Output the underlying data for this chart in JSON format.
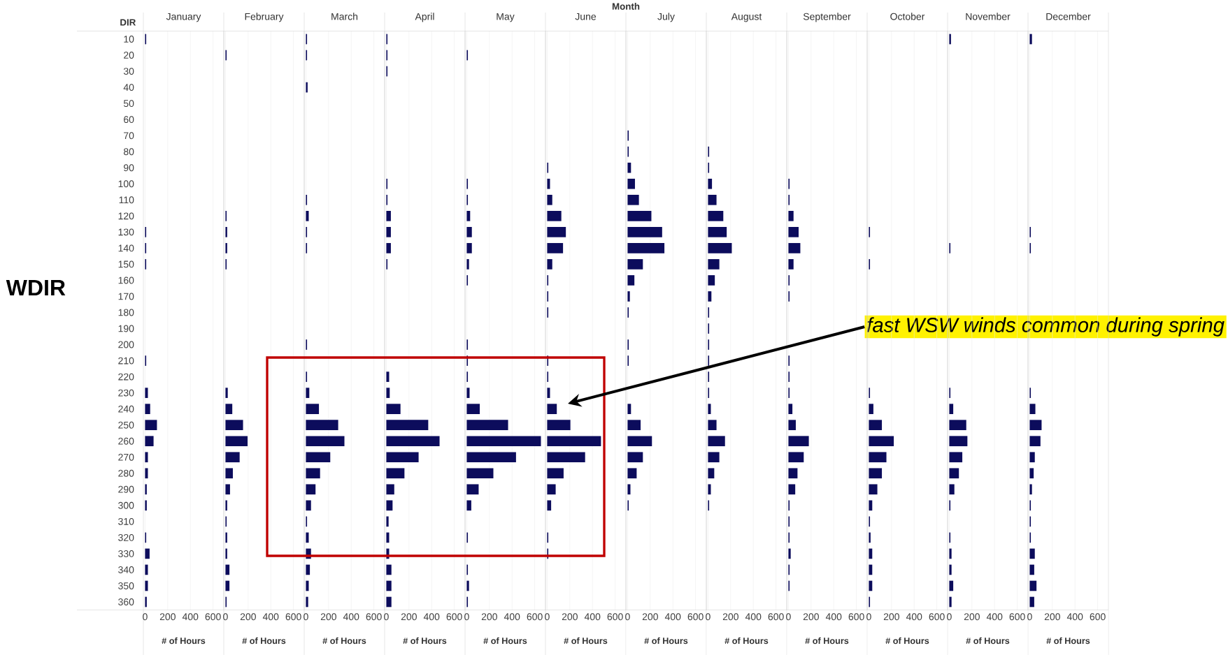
{
  "chart_data": [
    {
      "type": "bar",
      "orientation": "horizontal",
      "title": "January",
      "xlabel": "# of Hours",
      "ylabel": "WDIR",
      "annotations": [
        "Month",
        "DIR"
      ],
      "categories": [
        "10",
        "20",
        "30",
        "40",
        "50",
        "60",
        "70",
        "80",
        "90",
        "100",
        "110",
        "120",
        "130",
        "140",
        "150",
        "160",
        "170",
        "180",
        "190",
        "200",
        "210",
        "220",
        "230",
        "240",
        "250",
        "260",
        "270",
        "280",
        "290",
        "300",
        "310",
        "320",
        "330",
        "340",
        "350",
        "360"
      ],
      "color": "#0c0c5c",
      "xlim": [
        -15,
        695
      ],
      "xticks": [
        0,
        200,
        400,
        600
      ],
      "grid": "x",
      "values": [
        10,
        null,
        null,
        null,
        null,
        null,
        null,
        null,
        null,
        null,
        null,
        null,
        10,
        10,
        10,
        null,
        null,
        null,
        null,
        null,
        10,
        null,
        25,
        45,
        105,
        75,
        25,
        25,
        15,
        15,
        null,
        10,
        40,
        25,
        25,
        15
      ]
    },
    {
      "type": "bar",
      "orientation": "horizontal",
      "title": "February",
      "xlabel": "# of Hours",
      "tick_labels": "x",
      "categories": [
        "10",
        "20",
        "30",
        "40",
        "50",
        "60",
        "70",
        "80",
        "90",
        "100",
        "110",
        "120",
        "130",
        "140",
        "150",
        "160",
        "170",
        "180",
        "190",
        "200",
        "210",
        "220",
        "230",
        "240",
        "250",
        "260",
        "270",
        "280",
        "290",
        "300",
        "310",
        "320",
        "330",
        "340",
        "350",
        "360"
      ],
      "color": "#0c0c5c",
      "xlim": [
        -15,
        695
      ],
      "xticks": [
        0,
        200,
        400,
        600
      ],
      "grid": "x",
      "values": [
        null,
        10,
        null,
        null,
        null,
        null,
        null,
        null,
        null,
        null,
        null,
        10,
        15,
        15,
        10,
        null,
        null,
        null,
        null,
        null,
        null,
        null,
        20,
        60,
        155,
        195,
        125,
        65,
        40,
        15,
        10,
        15,
        15,
        35,
        35,
        10
      ]
    },
    {
      "type": "bar",
      "orientation": "horizontal",
      "title": "March",
      "xlabel": "# of Hours",
      "tick_labels": "x",
      "categories": [
        "10",
        "20",
        "30",
        "40",
        "50",
        "60",
        "70",
        "80",
        "90",
        "100",
        "110",
        "120",
        "130",
        "140",
        "150",
        "160",
        "170",
        "180",
        "190",
        "200",
        "210",
        "220",
        "230",
        "240",
        "250",
        "260",
        "270",
        "280",
        "290",
        "300",
        "310",
        "320",
        "330",
        "340",
        "350",
        "360"
      ],
      "color": "#0c0c5c",
      "xlim": [
        -15,
        695
      ],
      "xticks": [
        0,
        200,
        400,
        600
      ],
      "grid": "x",
      "values": [
        10,
        10,
        null,
        15,
        null,
        null,
        null,
        null,
        null,
        null,
        10,
        25,
        10,
        10,
        null,
        null,
        null,
        null,
        null,
        10,
        null,
        10,
        30,
        115,
        285,
        340,
        215,
        125,
        85,
        45,
        10,
        25,
        45,
        35,
        25,
        20
      ]
    },
    {
      "type": "bar",
      "orientation": "horizontal",
      "title": "April",
      "xlabel": "# of Hours",
      "tick_labels": "x",
      "categories": [
        "10",
        "20",
        "30",
        "40",
        "50",
        "60",
        "70",
        "80",
        "90",
        "100",
        "110",
        "120",
        "130",
        "140",
        "150",
        "160",
        "170",
        "180",
        "190",
        "200",
        "210",
        "220",
        "230",
        "240",
        "250",
        "260",
        "270",
        "280",
        "290",
        "300",
        "310",
        "320",
        "330",
        "340",
        "350",
        "360"
      ],
      "color": "#0c0c5c",
      "xlim": [
        -15,
        695
      ],
      "xticks": [
        0,
        200,
        400,
        600
      ],
      "grid": "x",
      "values": [
        10,
        10,
        10,
        null,
        null,
        null,
        null,
        null,
        null,
        10,
        10,
        40,
        40,
        40,
        10,
        null,
        null,
        null,
        null,
        null,
        null,
        25,
        30,
        125,
        370,
        470,
        285,
        160,
        70,
        55,
        20,
        25,
        25,
        45,
        45,
        45
      ]
    },
    {
      "type": "bar",
      "orientation": "horizontal",
      "title": "May",
      "xlabel": "# of Hours",
      "tick_labels": "x",
      "categories": [
        "10",
        "20",
        "30",
        "40",
        "50",
        "60",
        "70",
        "80",
        "90",
        "100",
        "110",
        "120",
        "130",
        "140",
        "150",
        "160",
        "170",
        "180",
        "190",
        "200",
        "210",
        "220",
        "230",
        "240",
        "250",
        "260",
        "270",
        "280",
        "290",
        "300",
        "310",
        "320",
        "330",
        "340",
        "350",
        "360"
      ],
      "color": "#0c0c5c",
      "xlim": [
        -15,
        695
      ],
      "xticks": [
        0,
        200,
        400,
        600
      ],
      "grid": "x",
      "values": [
        null,
        10,
        null,
        null,
        null,
        null,
        null,
        null,
        null,
        10,
        10,
        30,
        45,
        45,
        20,
        10,
        null,
        null,
        null,
        10,
        10,
        10,
        25,
        115,
        365,
        655,
        435,
        235,
        105,
        40,
        null,
        10,
        null,
        10,
        20,
        10
      ]
    },
    {
      "type": "bar",
      "orientation": "horizontal",
      "title": "June",
      "xlabel": "# of Hours",
      "tick_labels": "x",
      "annotations": [
        "fast WSW winds common during spring"
      ],
      "categories": [
        "10",
        "20",
        "30",
        "40",
        "50",
        "60",
        "70",
        "80",
        "90",
        "100",
        "110",
        "120",
        "130",
        "140",
        "150",
        "160",
        "170",
        "180",
        "190",
        "200",
        "210",
        "220",
        "230",
        "240",
        "250",
        "260",
        "270",
        "280",
        "290",
        "300",
        "310",
        "320",
        "330",
        "340",
        "350",
        "360"
      ],
      "color": "#0c0c5c",
      "xlim": [
        -15,
        695
      ],
      "xticks": [
        0,
        200,
        400,
        600
      ],
      "grid": "x",
      "values": [
        null,
        null,
        null,
        null,
        null,
        null,
        null,
        null,
        10,
        25,
        45,
        125,
        165,
        140,
        45,
        10,
        10,
        10,
        null,
        null,
        10,
        10,
        25,
        85,
        205,
        475,
        335,
        145,
        75,
        35,
        null,
        10,
        10,
        null,
        null,
        null
      ]
    },
    {
      "type": "bar",
      "orientation": "horizontal",
      "title": "July",
      "xlabel": "# of Hours",
      "tick_labels": "x",
      "categories": [
        "10",
        "20",
        "30",
        "40",
        "50",
        "60",
        "70",
        "80",
        "90",
        "100",
        "110",
        "120",
        "130",
        "140",
        "150",
        "160",
        "170",
        "180",
        "190",
        "200",
        "210",
        "220",
        "230",
        "240",
        "250",
        "260",
        "270",
        "280",
        "290",
        "300",
        "310",
        "320",
        "330",
        "340",
        "350",
        "360"
      ],
      "color": "#0c0c5c",
      "xlim": [
        -15,
        695
      ],
      "xticks": [
        0,
        200,
        400,
        600
      ],
      "grid": "x",
      "values": [
        null,
        null,
        null,
        null,
        null,
        null,
        10,
        10,
        30,
        65,
        100,
        210,
        305,
        325,
        135,
        60,
        20,
        10,
        null,
        10,
        10,
        null,
        null,
        30,
        115,
        215,
        135,
        80,
        25,
        10,
        null,
        null,
        null,
        null,
        null,
        null
      ]
    },
    {
      "type": "bar",
      "orientation": "horizontal",
      "title": "August",
      "xlabel": "# of Hours",
      "tick_labels": "x",
      "categories": [
        "10",
        "20",
        "30",
        "40",
        "50",
        "60",
        "70",
        "80",
        "90",
        "100",
        "110",
        "120",
        "130",
        "140",
        "150",
        "160",
        "170",
        "180",
        "190",
        "200",
        "210",
        "220",
        "230",
        "240",
        "250",
        "260",
        "270",
        "280",
        "290",
        "300",
        "310",
        "320",
        "330",
        "340",
        "350",
        "360"
      ],
      "color": "#0c0c5c",
      "xlim": [
        -15,
        695
      ],
      "xticks": [
        0,
        200,
        400,
        600
      ],
      "grid": "x",
      "values": [
        null,
        null,
        null,
        null,
        null,
        null,
        null,
        10,
        10,
        35,
        75,
        135,
        165,
        210,
        100,
        60,
        30,
        10,
        10,
        10,
        10,
        10,
        10,
        25,
        75,
        150,
        100,
        55,
        25,
        10,
        null,
        null,
        null,
        null,
        null,
        null
      ]
    },
    {
      "type": "bar",
      "orientation": "horizontal",
      "title": "September",
      "xlabel": "# of Hours",
      "tick_labels": "x",
      "categories": [
        "10",
        "20",
        "30",
        "40",
        "50",
        "60",
        "70",
        "80",
        "90",
        "100",
        "110",
        "120",
        "130",
        "140",
        "150",
        "160",
        "170",
        "180",
        "190",
        "200",
        "210",
        "220",
        "230",
        "240",
        "250",
        "260",
        "270",
        "280",
        "290",
        "300",
        "310",
        "320",
        "330",
        "340",
        "350",
        "360"
      ],
      "color": "#0c0c5c",
      "xlim": [
        -15,
        695
      ],
      "xticks": [
        0,
        200,
        400,
        600
      ],
      "grid": "x",
      "values": [
        null,
        null,
        null,
        null,
        null,
        null,
        null,
        null,
        null,
        10,
        10,
        45,
        90,
        105,
        45,
        10,
        10,
        null,
        null,
        null,
        10,
        10,
        10,
        35,
        65,
        180,
        135,
        80,
        60,
        10,
        10,
        10,
        20,
        10,
        10,
        null
      ]
    },
    {
      "type": "bar",
      "orientation": "horizontal",
      "title": "October",
      "xlabel": "# of Hours",
      "tick_labels": "x",
      "categories": [
        "10",
        "20",
        "30",
        "40",
        "50",
        "60",
        "70",
        "80",
        "90",
        "100",
        "110",
        "120",
        "130",
        "140",
        "150",
        "160",
        "170",
        "180",
        "190",
        "200",
        "210",
        "220",
        "230",
        "240",
        "250",
        "260",
        "270",
        "280",
        "290",
        "300",
        "310",
        "320",
        "330",
        "340",
        "350",
        "360"
      ],
      "color": "#0c0c5c",
      "xlim": [
        -15,
        695
      ],
      "xticks": [
        0,
        200,
        400,
        600
      ],
      "grid": "x",
      "values": [
        null,
        null,
        null,
        null,
        null,
        null,
        null,
        null,
        null,
        null,
        null,
        null,
        10,
        null,
        10,
        null,
        null,
        null,
        null,
        null,
        null,
        null,
        10,
        40,
        115,
        220,
        155,
        115,
        75,
        30,
        10,
        15,
        30,
        30,
        30,
        10
      ]
    },
    {
      "type": "bar",
      "orientation": "horizontal",
      "title": "November",
      "xlabel": "# of Hours",
      "tick_labels": "x",
      "categories": [
        "10",
        "20",
        "30",
        "40",
        "50",
        "60",
        "70",
        "80",
        "90",
        "100",
        "110",
        "120",
        "130",
        "140",
        "150",
        "160",
        "170",
        "180",
        "190",
        "200",
        "210",
        "220",
        "230",
        "240",
        "250",
        "260",
        "270",
        "280",
        "290",
        "300",
        "310",
        "320",
        "330",
        "340",
        "350",
        "360"
      ],
      "color": "#0c0c5c",
      "xlim": [
        -15,
        695
      ],
      "xticks": [
        0,
        200,
        400,
        600
      ],
      "grid": "x",
      "values": [
        15,
        null,
        null,
        null,
        null,
        null,
        null,
        null,
        null,
        null,
        null,
        null,
        null,
        10,
        null,
        null,
        null,
        null,
        null,
        null,
        null,
        null,
        10,
        35,
        150,
        160,
        115,
        85,
        45,
        10,
        null,
        10,
        20,
        20,
        35,
        20
      ]
    },
    {
      "type": "bar",
      "orientation": "horizontal",
      "title": "December",
      "xlabel": "# of Hours",
      "tick_labels": "x",
      "categories": [
        "10",
        "20",
        "30",
        "40",
        "50",
        "60",
        "70",
        "80",
        "90",
        "100",
        "110",
        "120",
        "130",
        "140",
        "150",
        "160",
        "170",
        "180",
        "190",
        "200",
        "210",
        "220",
        "230",
        "240",
        "250",
        "260",
        "270",
        "280",
        "290",
        "300",
        "310",
        "320",
        "330",
        "340",
        "350",
        "360"
      ],
      "color": "#0c0c5c",
      "xlim": [
        -15,
        695
      ],
      "xticks": [
        0,
        200,
        400,
        600
      ],
      "grid": "x",
      "values": [
        20,
        null,
        null,
        null,
        null,
        null,
        null,
        null,
        null,
        null,
        null,
        null,
        10,
        10,
        null,
        null,
        null,
        null,
        null,
        null,
        null,
        null,
        10,
        50,
        105,
        95,
        45,
        35,
        20,
        10,
        10,
        10,
        45,
        40,
        60,
        40
      ]
    }
  ]
}
